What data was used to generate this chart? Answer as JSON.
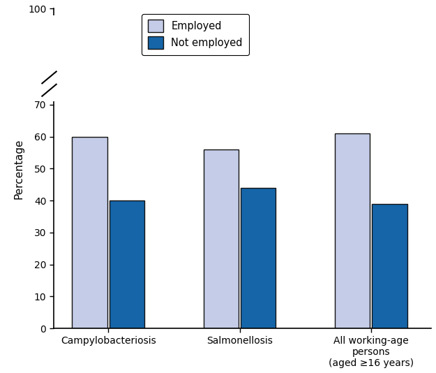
{
  "categories": [
    "Campylobacteriosis",
    "Salmonellosis",
    "All working-age\npersons\n(aged ≥16 years)"
  ],
  "employed_values": [
    60,
    56,
    61
  ],
  "not_employed_values": [
    40,
    44,
    39
  ],
  "employed_color": "#c5cce8",
  "not_employed_color": "#1565a8",
  "bar_edgecolor": "#111111",
  "ylabel": "Percentage",
  "yticks": [
    0,
    10,
    20,
    30,
    40,
    50,
    60,
    70,
    100
  ],
  "ylim": [
    0,
    100
  ],
  "legend_employed": "Employed",
  "legend_not_employed": "Not employed",
  "bar_width": 0.32,
  "background_color": "#ffffff",
  "figsize": [
    6.25,
    5.34
  ],
  "dpi": 100
}
